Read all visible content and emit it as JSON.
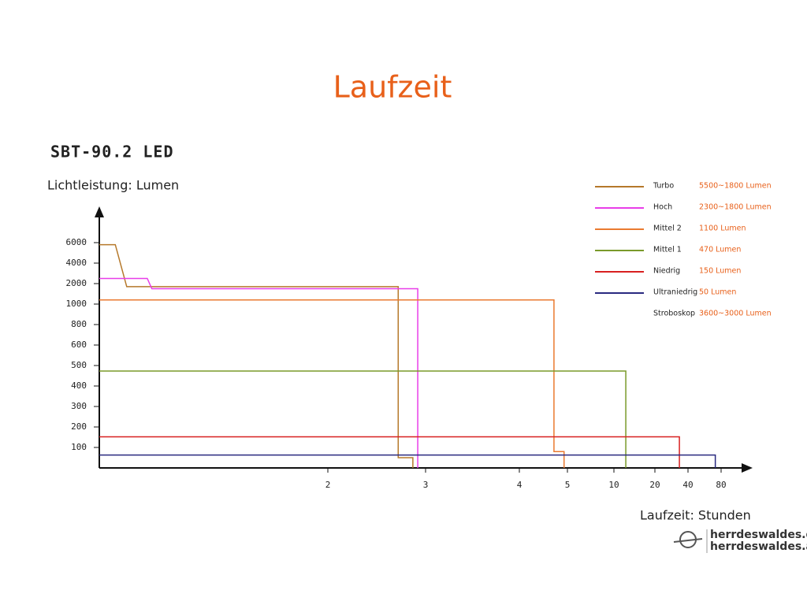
{
  "chart_data": {
    "type": "line",
    "title": "Laufzeit",
    "subtitle": "SBT-90.2 LED",
    "y_label": "Lichtleistung: Lumen",
    "x_label": "Laufzeit: Stunden",
    "xlim": [
      0,
      80
    ],
    "xticks": [
      2,
      3,
      4,
      5,
      10,
      20,
      40,
      80
    ],
    "ylim": [
      0,
      6000
    ],
    "yticks": [
      100,
      200,
      300,
      400,
      500,
      600,
      800,
      1000,
      2000,
      4000,
      6000
    ],
    "series": [
      {
        "name": "Turbo",
        "description": "5500~1800 Lumen",
        "color": "#b5782a",
        "x": [
          0,
          0.14,
          0.24,
          2.72,
          2.72,
          2.87,
          2.87
        ],
        "values": [
          5800,
          5800,
          1850,
          1850,
          50,
          50,
          0
        ]
      },
      {
        "name": "Hoch",
        "description": "2300~1800 Lumen",
        "color": "#e83ee8",
        "x": [
          0,
          0.42,
          0.46,
          2.92,
          2.92
        ],
        "values": [
          2500,
          2500,
          1750,
          1750,
          0
        ]
      },
      {
        "name": "Mittel 2",
        "description": "1100 Lumen",
        "color": "#ea7a30",
        "x": [
          0,
          4.72,
          4.72,
          4.93,
          4.93
        ],
        "values": [
          1200,
          1200,
          80,
          80,
          0
        ]
      },
      {
        "name": "Mittel 1",
        "description": "470 Lumen",
        "color": "#7a9a2a",
        "x": [
          0,
          12.9,
          12.9
        ],
        "values": [
          473,
          473,
          0
        ]
      },
      {
        "name": "Niedrig",
        "description": "150 Lumen",
        "color": "#d82020",
        "x": [
          0,
          34.8,
          34.8
        ],
        "values": [
          152,
          152,
          0
        ]
      },
      {
        "name": "Ultraniedrig",
        "description": "50 Lumen",
        "color": "#2a2a80",
        "x": [
          0,
          73,
          73
        ],
        "values": [
          63,
          63,
          0
        ]
      },
      {
        "name": "Stroboskop",
        "description": "3600~3000 Lumen",
        "x": [],
        "values": []
      }
    ],
    "watermark": [
      "herrdeswaldes.de",
      "herrdeswaldes.at"
    ]
  }
}
